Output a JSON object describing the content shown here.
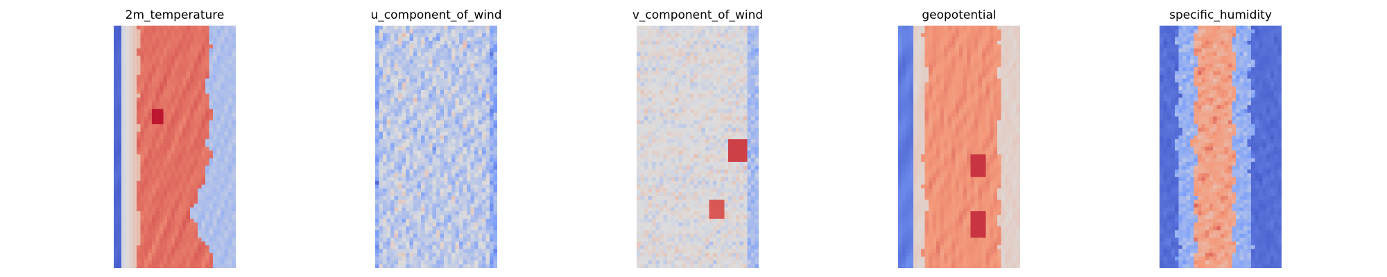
{
  "chart_data": [
    {
      "type": "heatmap",
      "title": "2m_temperature",
      "field": "2m_temperature",
      "colormap": "coolwarm",
      "xlabel": "",
      "ylabel": "",
      "axes": "off"
    },
    {
      "type": "heatmap",
      "title": "u_component_of_wind",
      "field": "u_component_of_wind",
      "colormap": "coolwarm",
      "xlabel": "",
      "ylabel": "",
      "axes": "off"
    },
    {
      "type": "heatmap",
      "title": "v_component_of_wind",
      "field": "v_component_of_wind",
      "colormap": "coolwarm",
      "xlabel": "",
      "ylabel": "",
      "axes": "off"
    },
    {
      "type": "heatmap",
      "title": "geopotential",
      "field": "geopotential",
      "colormap": "coolwarm",
      "xlabel": "",
      "ylabel": "",
      "axes": "off"
    },
    {
      "type": "heatmap",
      "title": "specific_humidity",
      "field": "specific_humidity",
      "colormap": "coolwarm",
      "xlabel": "",
      "ylabel": "",
      "axes": "off"
    }
  ]
}
